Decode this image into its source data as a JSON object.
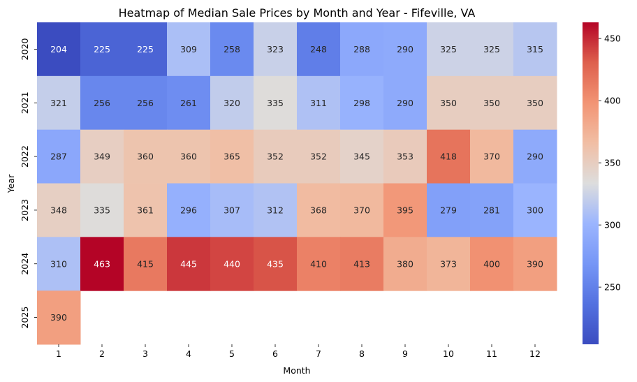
{
  "chart_data": {
    "type": "heatmap",
    "title": "Heatmap of Median Sale Prices by Month and Year - Fifeville, VA",
    "xlabel": "Month",
    "ylabel": "Year",
    "x_categories": [
      "1",
      "2",
      "3",
      "4",
      "5",
      "6",
      "7",
      "8",
      "9",
      "10",
      "11",
      "12"
    ],
    "y_categories": [
      "2020",
      "2021",
      "2022",
      "2023",
      "2024",
      "2025"
    ],
    "values": [
      [
        204,
        225,
        225,
        309,
        258,
        323,
        248,
        288,
        290,
        325,
        325,
        315
      ],
      [
        321,
        256,
        256,
        261,
        320,
        335,
        311,
        298,
        290,
        350,
        350,
        350
      ],
      [
        287,
        349,
        360,
        360,
        365,
        352,
        352,
        345,
        353,
        418,
        370,
        290
      ],
      [
        348,
        335,
        361,
        296,
        307,
        312,
        368,
        370,
        395,
        279,
        281,
        300
      ],
      [
        310,
        463,
        415,
        445,
        440,
        435,
        410,
        413,
        380,
        373,
        400,
        390
      ],
      [
        390,
        null,
        null,
        null,
        null,
        null,
        null,
        null,
        null,
        null,
        null,
        null
      ]
    ],
    "colormap": "coolwarm",
    "vmin": 204,
    "vmax": 463,
    "colorbar_ticks": [
      "250",
      "300",
      "350",
      "400",
      "450"
    ]
  }
}
